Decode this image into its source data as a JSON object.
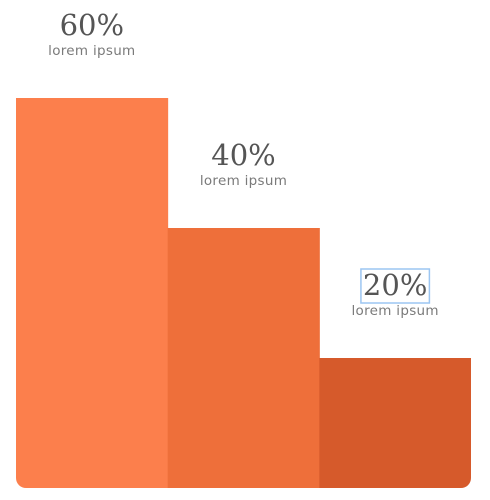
{
  "chart_data": {
    "type": "bar",
    "categories": [
      "lorem ipsum",
      "lorem ipsum",
      "lorem ipsum"
    ],
    "values": [
      60,
      40,
      20
    ],
    "value_labels": [
      "60%",
      "40%",
      "20%"
    ],
    "ylim": [
      0,
      70
    ],
    "grid": false,
    "colors": [
      "#fc7f4c",
      "#ee6f3a",
      "#d65a2b"
    ],
    "selected_label_index": 2
  }
}
